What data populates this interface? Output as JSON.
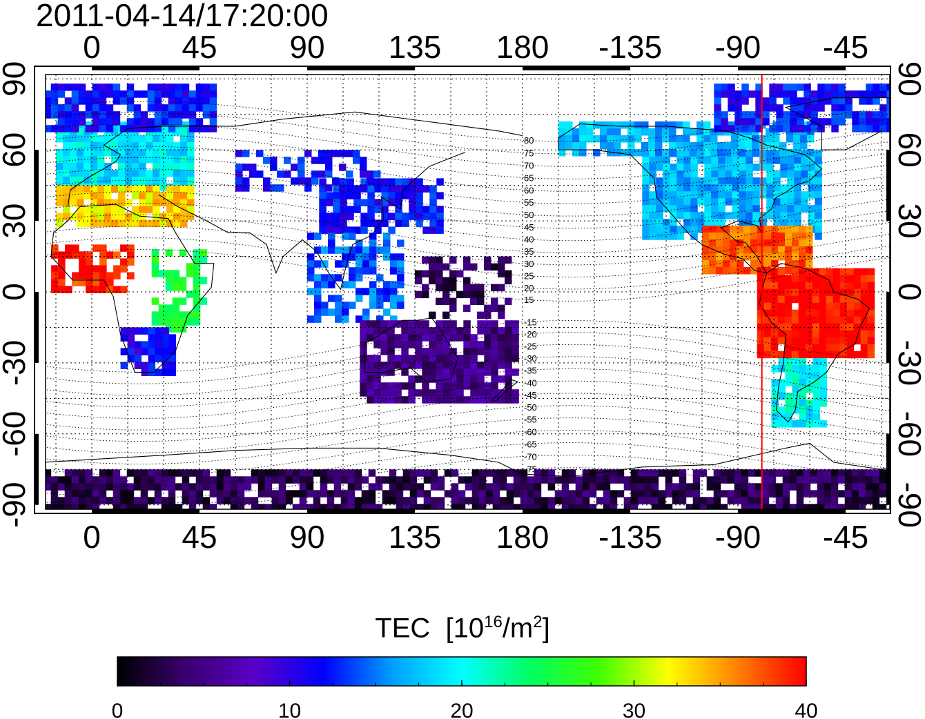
{
  "timestamp": "2011-04-14/17:20:00",
  "map": {
    "projection": "plate carree, centered 165E",
    "lon_ticks_top": [
      "0",
      "45",
      "90",
      "135",
      "180",
      "-135",
      "-90",
      "-45"
    ],
    "lon_ticks_bottom": [
      "0",
      "45",
      "90",
      "135",
      "180",
      "-135",
      "-90",
      "-45"
    ],
    "lat_ticks_left": [
      "90",
      "60",
      "30",
      "0",
      "-30",
      "-60",
      "-90"
    ],
    "lat_ticks_right": [
      "90",
      "60",
      "30",
      "0",
      "-30",
      "-60",
      "-90"
    ],
    "grid": "dotted, every 15 degrees",
    "marker_meridian_lon": -80,
    "marker_color": "#ff0000",
    "magnetic_latitude_labels": [
      "80",
      "75",
      "70",
      "65",
      "60",
      "55",
      "50",
      "45",
      "40",
      "35",
      "30",
      "25",
      "20",
      "15",
      "-15",
      "-20",
      "-25",
      "-30",
      "-35",
      "-40",
      "-45",
      "-50",
      "-55",
      "-60",
      "-65",
      "-70",
      "-75"
    ]
  },
  "colorbar": {
    "title": "TEC",
    "unit_base": "[10",
    "unit_exp": "16",
    "unit_mid": "/m",
    "unit_exp2": "2",
    "unit_end": "]",
    "min": 0,
    "max": 40,
    "tick_labels": [
      "0",
      "10",
      "20",
      "30",
      "40"
    ],
    "colormap": [
      "#000000",
      "#3a0070",
      "#5a00c8",
      "#0000ff",
      "#00a0ff",
      "#00ffff",
      "#00ff60",
      "#40ff00",
      "#ffff00",
      "#ff8000",
      "#ff0000"
    ]
  },
  "tec_regions": [
    {
      "name": "north-america",
      "level": 17
    },
    {
      "name": "caribbean-central-america",
      "level": 37
    },
    {
      "name": "south-america-north",
      "level": 40
    },
    {
      "name": "south-america-south",
      "level": 20
    },
    {
      "name": "europe",
      "level": 19
    },
    {
      "name": "mediterranean",
      "level": 33
    },
    {
      "name": "west-africa",
      "level": 39
    },
    {
      "name": "east-africa",
      "level": 25
    },
    {
      "name": "southern-africa",
      "level": 11
    },
    {
      "name": "east-asia",
      "level": 12
    },
    {
      "name": "southeast-asia",
      "level": 14
    },
    {
      "name": "australia",
      "level": 5
    },
    {
      "name": "indonesia-pacific",
      "level": 3
    },
    {
      "name": "antarctica",
      "level": 3
    },
    {
      "name": "arctic",
      "level": 12
    }
  ]
}
